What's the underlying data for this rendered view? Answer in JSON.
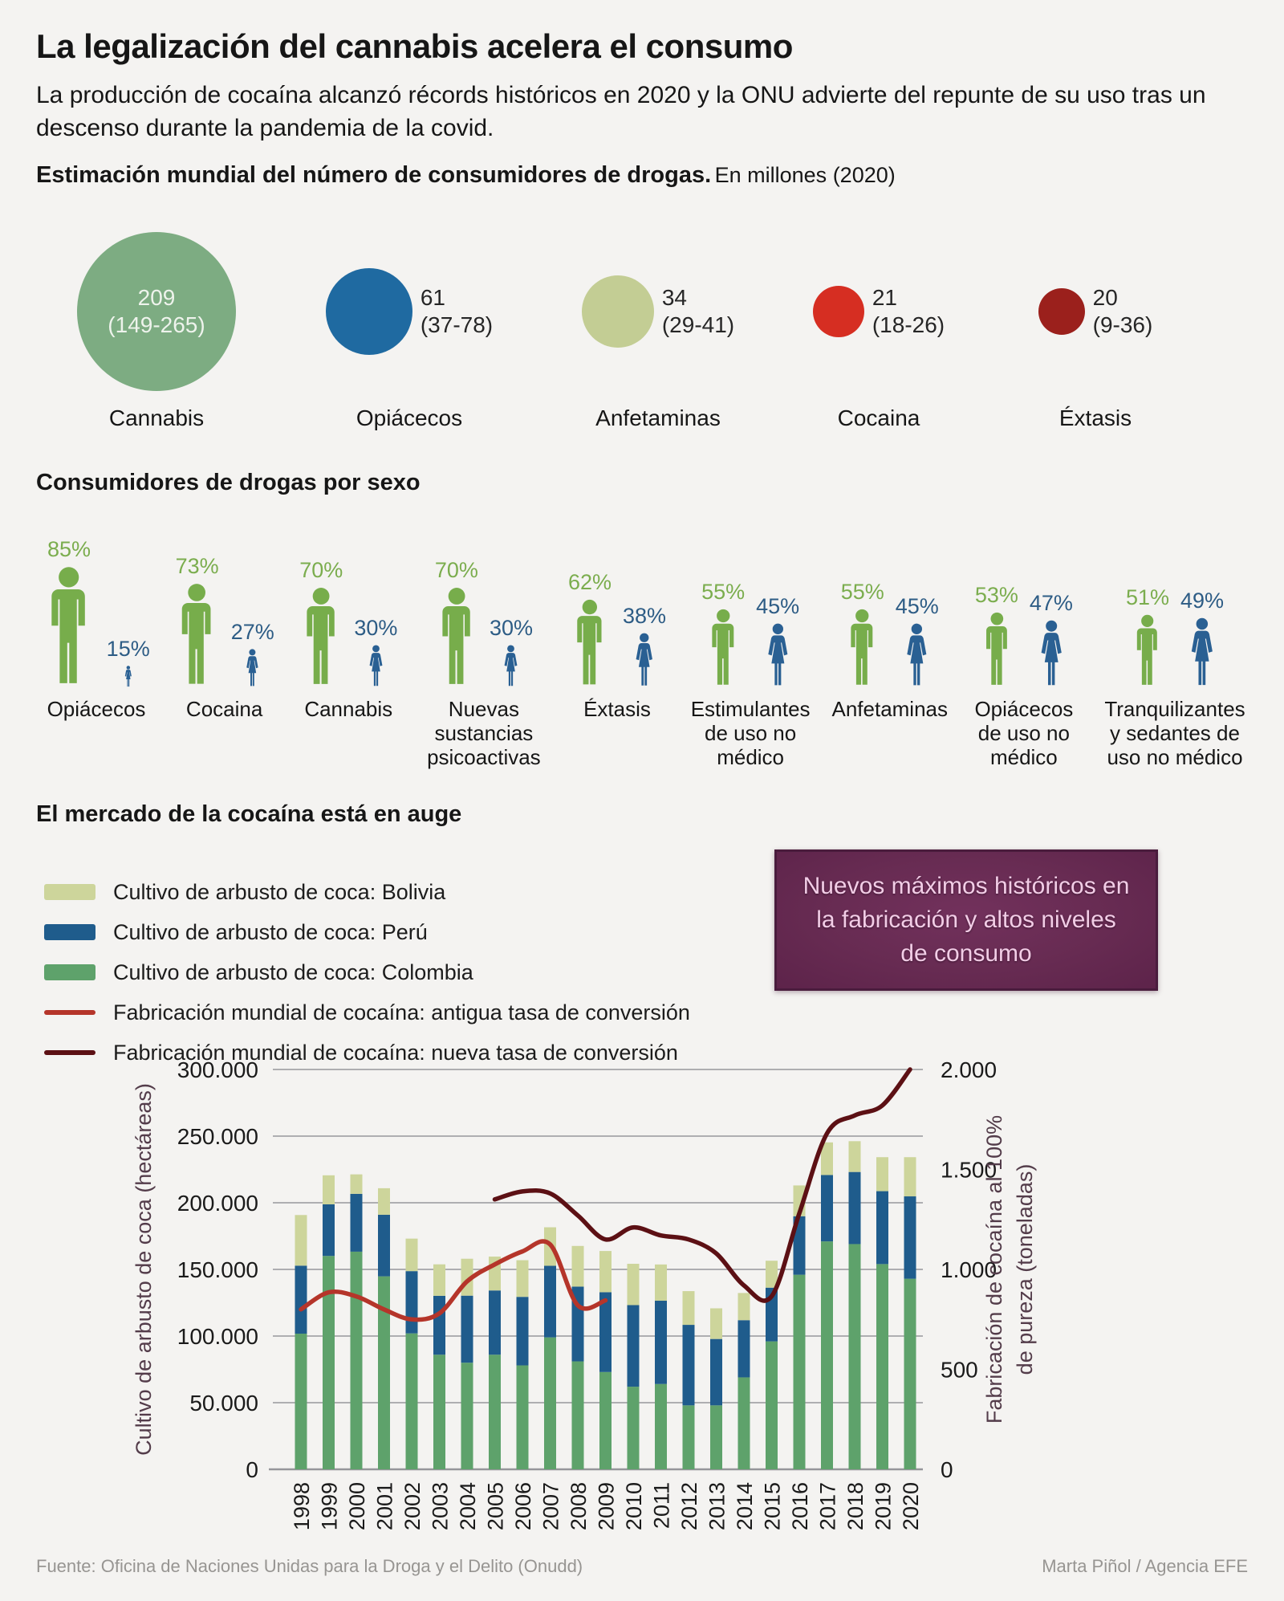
{
  "page": {
    "background": "#f4f3f1"
  },
  "header": {
    "title": "La legalización del cannabis acelera el consumo",
    "subtitle": "La producción de cocaína alcanzó récords históricos en 2020 y la ONU advierte del repunte de su uso tras un descenso durante la pandemia de la covid."
  },
  "drug_users": {
    "heading": "Estimación mundial del número de consumidores de drogas.",
    "heading_note": "En millones (2020)",
    "unit": "millones de consumidores",
    "items": [
      {
        "label": "Cannabis",
        "value": "209",
        "range": "(149-265)",
        "color": "#7dac82",
        "diameter": 198,
        "value_inside": true
      },
      {
        "label": "Opiácecos",
        "value": "61",
        "range": "(37-78)",
        "color": "#1f6aa1",
        "diameter": 108,
        "value_inside": false
      },
      {
        "label": "Anfetaminas",
        "value": "34",
        "range": "(29-41)",
        "color": "#c3cd94",
        "diameter": 90,
        "value_inside": false
      },
      {
        "label": "Cocaina",
        "value": "21",
        "range": "(18-26)",
        "color": "#d62e22",
        "diameter": 64,
        "value_inside": false
      },
      {
        "label": "Éxtasis",
        "value": "20",
        "range": "(9-36)",
        "color": "#9b201c",
        "diameter": 58,
        "value_inside": false
      }
    ]
  },
  "by_sex": {
    "heading": "Consumidores de drogas por sexo",
    "male_color": "#77ad4b",
    "female_color": "#2a6093",
    "male_label_color": "#7bad4e",
    "female_label_color": "#2d5c85",
    "groups": [
      {
        "label": "Opiácecos",
        "male": 85,
        "female": 15
      },
      {
        "label": "Cocaina",
        "male": 73,
        "female": 27
      },
      {
        "label": "Cannabis",
        "male": 70,
        "female": 30
      },
      {
        "label": "Nuevas sustancias psicoactivas",
        "male": 70,
        "female": 30
      },
      {
        "label": "Éxtasis",
        "male": 62,
        "female": 38
      },
      {
        "label": "Estimulantes de uso no médico",
        "male": 55,
        "female": 45
      },
      {
        "label": "Anfetaminas",
        "male": 55,
        "female": 45
      },
      {
        "label": "Opiácecos de uso no médico",
        "male": 53,
        "female": 47
      },
      {
        "label": "Tranquilizantes y sedantes de uso no médico",
        "male": 51,
        "female": 49
      }
    ]
  },
  "market": {
    "heading": "El mercado de la cocaína está en auge",
    "legend": [
      {
        "type": "swatch",
        "color": "#cdd59b",
        "label": "Cultivo de arbusto de coca: Bolivia"
      },
      {
        "type": "swatch",
        "color": "#1f5c8c",
        "label": "Cultivo de arbusto de coca: Perú"
      },
      {
        "type": "swatch",
        "color": "#5ea26b",
        "label": "Cultivo de arbusto de coca: Colombia"
      },
      {
        "type": "line",
        "color": "#b5352a",
        "label": "Fabricación mundial de cocaína: antigua tasa de conversión"
      },
      {
        "type": "line",
        "color": "#5c1014",
        "label": "Fabricación mundial de cocaína: nueva tasa de conversión"
      }
    ],
    "callout": {
      "bg": "#672b52",
      "text_color": "#f2cde6",
      "lines": [
        "Nuevos máximos históricos en",
        "la fabricación y altos niveles",
        "de consumo"
      ]
    }
  },
  "chart_data": {
    "type": "bar",
    "subtype": "stacked-bars-with-lines",
    "x_years": [
      1998,
      1999,
      2000,
      2001,
      2002,
      2003,
      2004,
      2005,
      2006,
      2007,
      2008,
      2009,
      2010,
      2011,
      2012,
      2013,
      2014,
      2015,
      2016,
      2017,
      2018,
      2019,
      2020
    ],
    "bar_unit": "hectáreas",
    "bar_series": [
      {
        "name": "Cultivo de arbusto de coca: Colombia",
        "color": "#5ea26b",
        "values": [
          101800,
          160100,
          163300,
          144800,
          102000,
          86000,
          80000,
          86000,
          78000,
          99000,
          81000,
          73000,
          62000,
          64000,
          48000,
          48000,
          69000,
          96000,
          146000,
          171000,
          169000,
          154000,
          143000
        ]
      },
      {
        "name": "Cultivo de arbusto de coca: Perú",
        "color": "#1f5c8c",
        "values": [
          51000,
          38700,
          43400,
          46200,
          46700,
          44200,
          50300,
          48200,
          51400,
          53700,
          56100,
          59900,
          61200,
          62500,
          60400,
          49800,
          42900,
          40300,
          43900,
          49800,
          54100,
          54700,
          61800
        ]
      },
      {
        "name": "Cultivo de arbusto de coca: Bolivia",
        "color": "#cdd59b",
        "values": [
          38000,
          21800,
          14600,
          19900,
          24400,
          23600,
          27700,
          25400,
          27500,
          28900,
          30500,
          30900,
          31000,
          27200,
          25300,
          23000,
          20400,
          20200,
          23100,
          24500,
          23100,
          25500,
          29400
        ]
      }
    ],
    "line_series": [
      {
        "name": "Fabricación mundial de cocaína: antigua tasa de conversión",
        "color": "#b5352a",
        "unit": "toneladas",
        "start_year": 1998,
        "values": [
          800,
          885,
          865,
          800,
          750,
          780,
          940,
          1025,
          1090,
          1125,
          820,
          845
        ]
      },
      {
        "name": "Fabricación mundial de cocaína: nueva tasa de conversión",
        "color": "#5c1014",
        "unit": "toneladas",
        "start_year": 2005,
        "values": [
          1350,
          1390,
          1380,
          1270,
          1150,
          1210,
          1170,
          1150,
          1080,
          920,
          865,
          1280,
          1680,
          1770,
          1820,
          2000
        ]
      }
    ],
    "left_axis": {
      "title": "Cultivo de arbusto de coca (hectáreas)",
      "max": 300000,
      "tick_step": 50000,
      "tick_labels": [
        "0",
        "50.000",
        "100.000",
        "150.000",
        "200.000",
        "250.000",
        "300.000"
      ]
    },
    "right_axis": {
      "title_line1": "Fabricación de cocaína al 100%",
      "title_line2": "de pureza (toneladas)",
      "max": 2000,
      "tick_step": 500,
      "tick_labels": [
        "0",
        "500",
        "1.000",
        "1.500",
        "2.000"
      ]
    },
    "grid": true,
    "legend_position": "top-left"
  },
  "footer": {
    "source": "Fuente: Oficina de Naciones Unidas para la Droga y el Delito (Onudd)",
    "credit": "Marta Piñol / Agencia EFE"
  }
}
